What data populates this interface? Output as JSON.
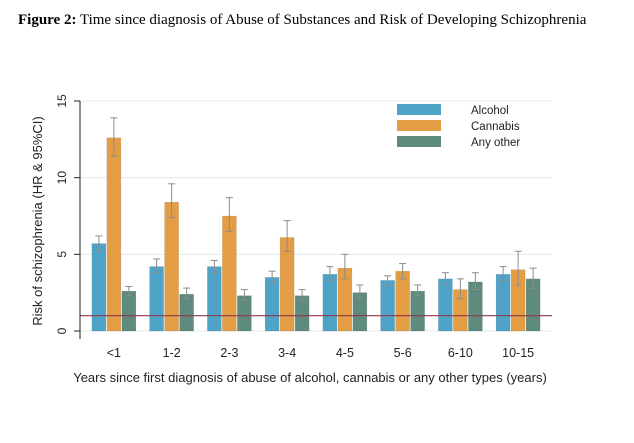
{
  "caption": {
    "label": "Figure 2:",
    "text": " Time since diagnosis of Abuse of Substances and Risk of Developing Schizophrenia"
  },
  "chart_data": {
    "type": "bar",
    "title": "Time since diagnosis of Abuse of Substances and Risk of Developing Schizophrenia",
    "xlabel": "Years since first diagnosis of abuse of alcohol, cannabis or any other types (years)",
    "ylabel": "Risk of schizophrenia (HR & 95%CI)",
    "ylim": [
      0,
      15
    ],
    "yticks": [
      "0",
      "5",
      "10",
      "15"
    ],
    "reference_line": 1,
    "legend_position": "top-right",
    "categories": [
      "<1",
      "1-2",
      "2-3",
      "3-4",
      "4-5",
      "5-6",
      "6-10",
      "10-15"
    ],
    "series": [
      {
        "name": "Alcohol",
        "color": "#4fa3c7",
        "values": [
          5.7,
          4.2,
          4.2,
          3.5,
          3.7,
          3.3,
          3.4,
          3.7
        ],
        "ci_low": [
          5.2,
          3.8,
          3.8,
          3.1,
          3.3,
          3.0,
          3.0,
          3.3
        ],
        "ci_high": [
          6.2,
          4.7,
          4.6,
          3.9,
          4.2,
          3.6,
          3.8,
          4.2
        ]
      },
      {
        "name": "Cannabis",
        "color": "#e29d45",
        "values": [
          12.6,
          8.4,
          7.5,
          6.1,
          4.1,
          3.9,
          2.7,
          4.0
        ],
        "ci_low": [
          11.4,
          7.4,
          6.5,
          5.2,
          3.4,
          3.4,
          2.1,
          3.0
        ],
        "ci_high": [
          13.9,
          9.6,
          8.7,
          7.2,
          5.0,
          4.4,
          3.4,
          5.2
        ]
      },
      {
        "name": "Any other",
        "color": "#5f8a7e",
        "values": [
          2.6,
          2.4,
          2.3,
          2.3,
          2.5,
          2.6,
          3.2,
          3.4
        ],
        "ci_low": [
          2.3,
          2.1,
          2.0,
          2.0,
          2.1,
          2.3,
          2.7,
          2.8
        ],
        "ci_high": [
          2.9,
          2.8,
          2.7,
          2.7,
          3.0,
          3.0,
          3.8,
          4.1
        ]
      }
    ]
  }
}
